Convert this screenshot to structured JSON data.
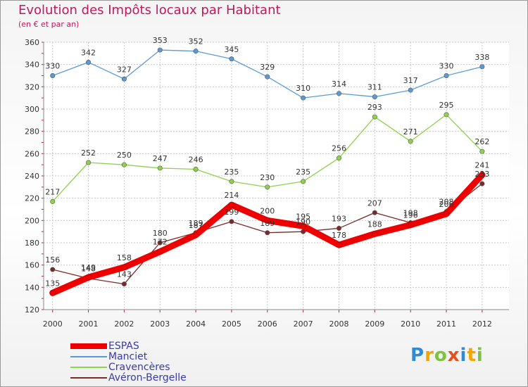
{
  "chart_data": {
    "type": "line",
    "title": "Evolution des Impôts locaux par Habitant",
    "subtitle": "(en € et par an)",
    "x": [
      "2000",
      "2001",
      "2002",
      "2003",
      "2004",
      "2005",
      "2006",
      "2007",
      "2008",
      "2009",
      "2010",
      "2011",
      "2012"
    ],
    "ylim": [
      120,
      360
    ],
    "yticks": [
      120,
      140,
      160,
      180,
      200,
      220,
      240,
      260,
      280,
      300,
      320,
      340,
      360
    ],
    "grid": true,
    "legend_position": "bottom-left",
    "series": [
      {
        "name": "Manciet",
        "color": "#5b9bd5",
        "values": [
          330,
          342,
          327,
          353,
          352,
          345,
          329,
          310,
          314,
          311,
          317,
          330,
          338
        ],
        "labels": [
          "330",
          "342",
          "327",
          "353",
          "352",
          "345",
          "329",
          "310",
          "314",
          "311",
          "317",
          "330",
          "338"
        ]
      },
      {
        "name": "Cravencères",
        "color": "#8ed14b",
        "values": [
          217,
          252,
          250,
          247,
          246,
          235,
          230,
          235,
          256,
          293,
          271,
          295,
          262
        ],
        "labels": [
          "217",
          "252",
          "250",
          "247",
          "246",
          "235",
          "230",
          "235",
          "256",
          "293",
          "271",
          "295",
          "262"
        ]
      },
      {
        "name": "Avéron-Bergelle",
        "color": "#7a2a2a",
        "values": [
          156,
          148,
          143,
          180,
          189,
          199,
          189,
          190,
          193,
          207,
          198,
          208,
          233
        ],
        "labels": [
          "156",
          "148",
          "143",
          "180",
          "189",
          "199",
          "189",
          "190",
          "193",
          "207",
          "198",
          "208",
          "233"
        ]
      },
      {
        "name": "ESPAS",
        "color": "#ee0000",
        "values": [
          135,
          149,
          158,
          172,
          187,
          214,
          200,
          195,
          178,
          188,
          196,
          206,
          241
        ],
        "labels": [
          "135",
          "149",
          "158",
          "172",
          "187",
          "214",
          "200",
          "195",
          "178",
          "188",
          "196",
          "206",
          "241"
        ]
      }
    ]
  },
  "legend": {
    "items": [
      {
        "label": "ESPAS",
        "color": "#ee0000",
        "weight": 8
      },
      {
        "label": "Manciet",
        "color": "#5b9bd5",
        "weight": 2
      },
      {
        "label": "Cravencères",
        "color": "#8ed14b",
        "weight": 2
      },
      {
        "label": "Avéron-Bergelle",
        "color": "#7a2a2a",
        "weight": 2
      }
    ]
  },
  "logo": {
    "letters": [
      "P",
      "r",
      "o",
      "x",
      "i",
      "t",
      "i"
    ],
    "colors": [
      "#2e8bd8",
      "#f2a500",
      "#7dc242",
      "#e94e1b",
      "#2e8bd8",
      "#f2a500",
      "#7dc242"
    ]
  }
}
